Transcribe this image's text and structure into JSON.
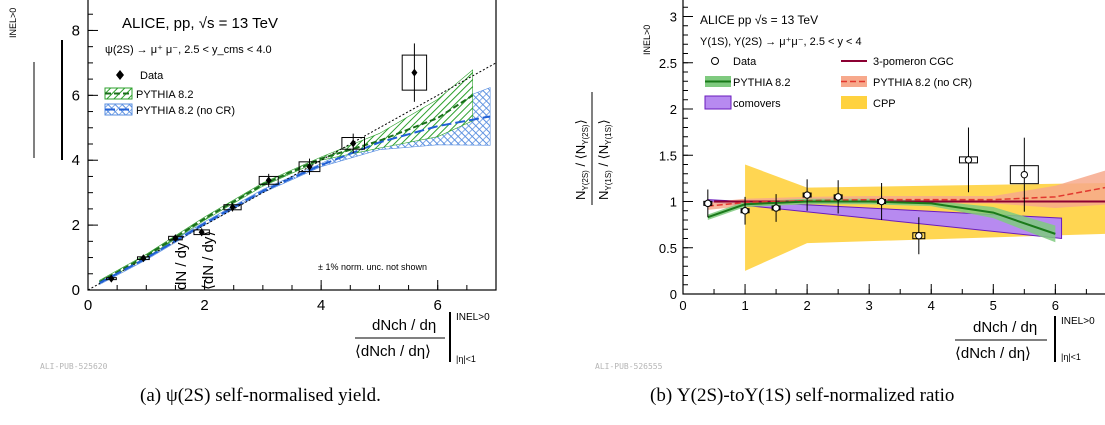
{
  "colors": {
    "pythia": "#2ca02c",
    "pythia_nocr": "#1f5fd6",
    "pythia_nocr_b": "#f07a5a",
    "comovers": "#8d3bd6",
    "cpp": "#ffd23f",
    "cgc": "#8b0032"
  },
  "chart_data": [
    {
      "type": "scatter",
      "panel": "a",
      "caption": "(a)  ψ(2S) self-normalised yield.",
      "pub_id": "ALI-PUB-525620",
      "system": "ALICE, pp, √s = 13 TeV",
      "process": "ψ(2S) → μ⁺ μ⁻, 2.5 < y_cms < 4.0",
      "note": "± 1% norm. unc. not shown",
      "xlabel": "dN_ch / dη ⁄ ⟨dN_ch / dη⟩ |_{|η|<1}^{INEL>0}",
      "xlabel_num": "dNch / dη",
      "xlabel_den": "⟨dNch / dη⟩",
      "xlabel_sub": "|η|<1",
      "xlabel_sup": "INEL>0",
      "ylabel_num": "dN / dy",
      "ylabel_den": "⟨dN / dy⟩",
      "ylabel_sup": "INEL>0",
      "xlim": [
        0,
        7
      ],
      "ylim": [
        0,
        9
      ],
      "xticks": [
        "0",
        "2",
        "4",
        "6"
      ],
      "yticks": [
        "0",
        "2",
        "4",
        "6",
        "8"
      ],
      "legend": [
        "Data",
        "PYTHIA 8.2",
        "PYTHIA 8.2 (no CR)"
      ],
      "series": [
        {
          "name": "Data",
          "x": [
            0.4,
            0.95,
            1.5,
            1.95,
            2.48,
            3.1,
            3.8,
            4.55,
            5.6
          ],
          "y": [
            0.35,
            0.98,
            1.6,
            1.78,
            2.55,
            3.38,
            3.8,
            4.52,
            6.7
          ],
          "yerr": [
            0.05,
            0.07,
            0.09,
            0.12,
            0.13,
            0.2,
            0.25,
            0.3,
            0.9
          ]
        },
        {
          "name": "PYTHIA 8.2",
          "x": [
            0.2,
            1,
            2,
            3,
            4,
            5,
            6,
            6.6
          ],
          "y": [
            0.25,
            1.05,
            2.2,
            3.25,
            4.05,
            4.6,
            5.3,
            6.0
          ]
        },
        {
          "name": "PYTHIA 8.2 (no CR)",
          "x": [
            0.2,
            1,
            2,
            3,
            4,
            5,
            6,
            6.9
          ],
          "y": [
            0.22,
            0.98,
            2.05,
            3.05,
            3.85,
            4.55,
            5.05,
            5.35
          ]
        },
        {
          "name": "linear",
          "x": [
            0,
            7
          ],
          "y": [
            0,
            7
          ]
        }
      ]
    },
    {
      "type": "scatter",
      "panel": "b",
      "caption": "(b)  Υ(2S)-toΥ(1S) self-normalized ratio",
      "pub_id": "ALI-PUB-526555",
      "system": "ALICE pp √s = 13 TeV",
      "process": "Υ(1S), Υ(2S) → μ⁺μ⁻, 2.5 < y < 4",
      "xlabel_num": "dNch / dη",
      "xlabel_den": "⟨dNch / dη⟩",
      "xlabel_sub": "|η|<1",
      "xlabel_sup": "INEL>0",
      "ylabel": "N_Υ(2S) / ⟨N_Υ(2S)⟩ ⁄ N_Υ(1S) / ⟨N_Υ(1S)⟩",
      "ylabel_sup": "INEL>0",
      "xlim": [
        0,
        6.8
      ],
      "ylim": [
        0,
        3.2
      ],
      "xticks": [
        "0",
        "1",
        "2",
        "3",
        "4",
        "5",
        "6"
      ],
      "yticks": [
        "0",
        "0.5",
        "1",
        "1.5",
        "2",
        "2.5",
        "3"
      ],
      "legend": [
        "Data",
        "3-pomeron CGC",
        "PYTHIA 8.2",
        "PYTHIA 8.2 (no CR)",
        "comovers",
        "CPP"
      ],
      "series": [
        {
          "name": "Data",
          "x": [
            0.4,
            1.0,
            1.5,
            2.0,
            2.5,
            3.2,
            3.8,
            4.6,
            5.5
          ],
          "y": [
            0.98,
            0.9,
            0.93,
            1.07,
            1.05,
            1.0,
            0.63,
            1.45,
            1.29
          ],
          "yerr": [
            0.15,
            0.15,
            0.15,
            0.17,
            0.18,
            0.2,
            0.2,
            0.35,
            0.4
          ]
        },
        {
          "name": "3-pomeron CGC",
          "x": [
            0.5,
            6.8
          ],
          "y": [
            1.0,
            1.0
          ]
        },
        {
          "name": "PYTHIA 8.2",
          "x": [
            0.4,
            1,
            2,
            3,
            4,
            5,
            6
          ],
          "y": [
            0.83,
            0.97,
            1.0,
            1.0,
            0.98,
            0.88,
            0.65
          ]
        },
        {
          "name": "PYTHIA 8.2 (no CR)",
          "x": [
            0.4,
            1,
            2,
            3,
            4,
            5,
            6,
            6.8
          ],
          "y": [
            0.95,
            0.99,
            1.01,
            1.02,
            1.02,
            1.02,
            1.05,
            1.15
          ]
        },
        {
          "name": "comovers",
          "x": [
            0.4,
            6.1
          ],
          "y_low": [
            1.0,
            0.6
          ],
          "y_high": [
            1.02,
            0.82
          ]
        },
        {
          "name": "CPP",
          "x": [
            1.0,
            2.0,
            6.8
          ],
          "y_low": [
            0.25,
            0.55,
            0.65
          ],
          "y_high": [
            1.4,
            1.15,
            1.2
          ]
        }
      ]
    }
  ]
}
